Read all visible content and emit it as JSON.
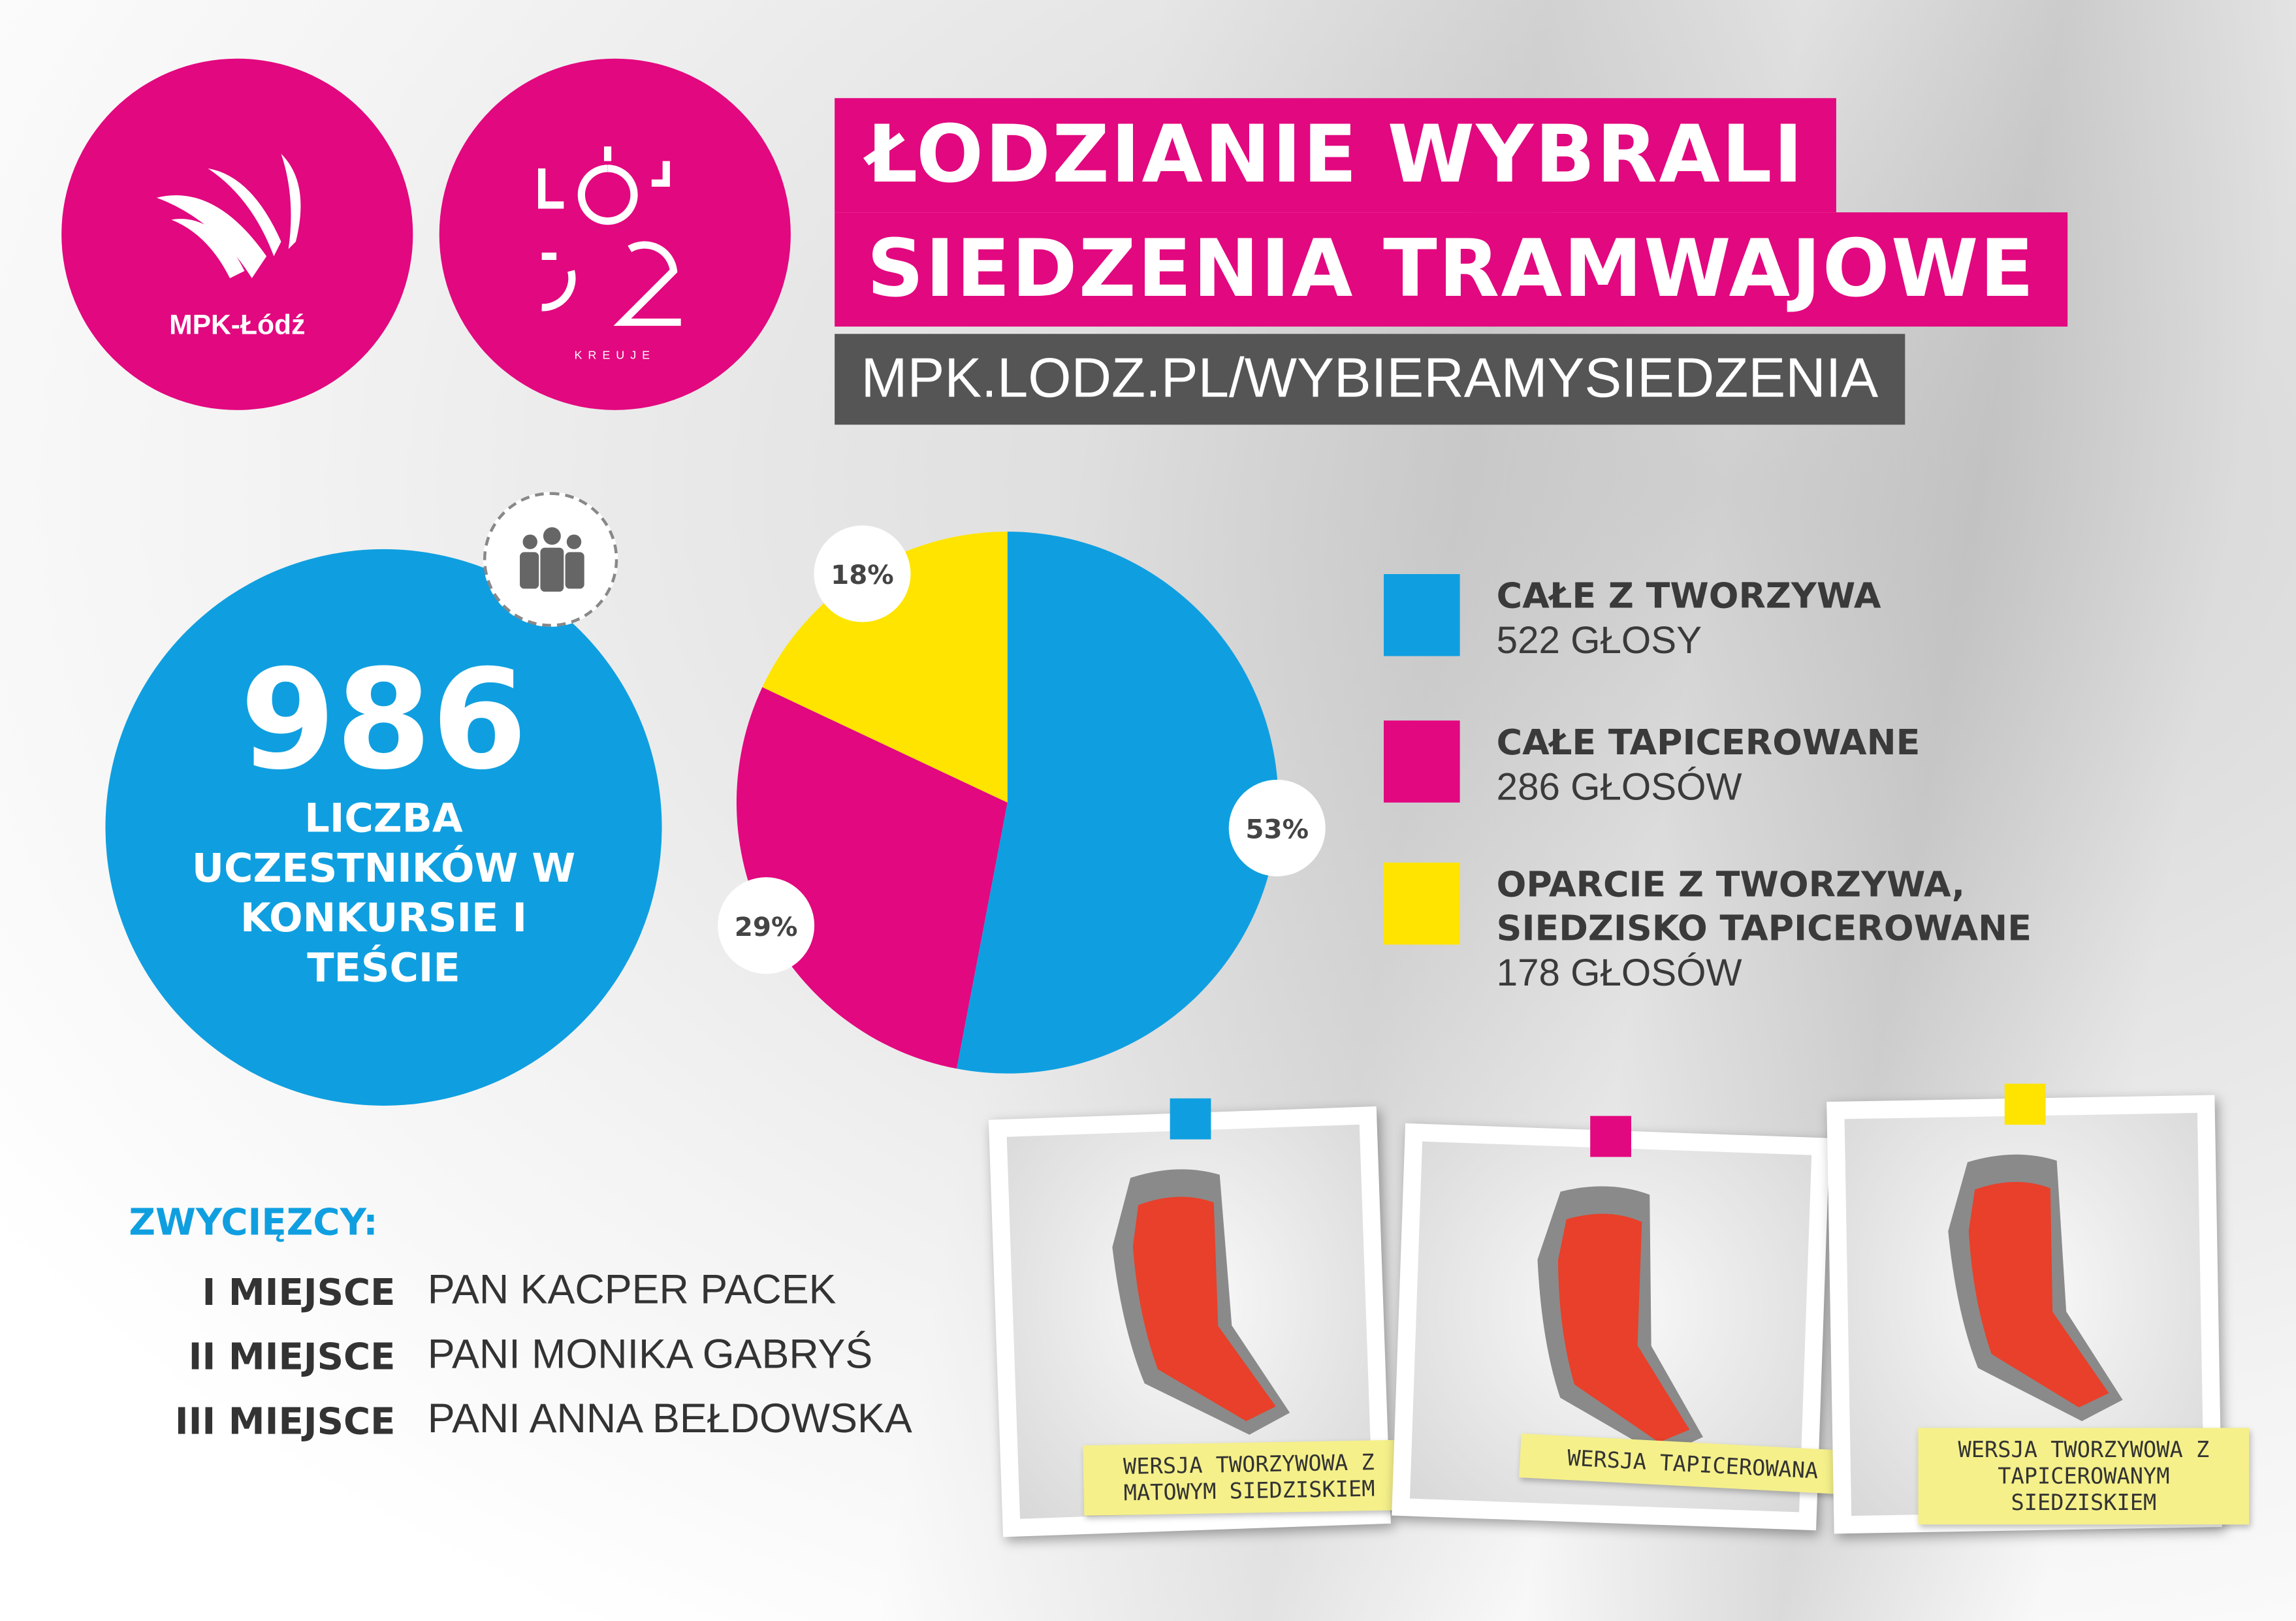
{
  "header": {
    "title_lines": [
      "ŁODZIANIE WYBRALI",
      "SIEDZENIA TRAMWAJOWE"
    ],
    "url": "MPK.LODZ.PL/WYBIERAMYSIEDZENIA"
  },
  "logos": {
    "mpk": "MPK-Łódź",
    "lodz": "KREUJE"
  },
  "participants": {
    "count": 986,
    "label": "LICZBA UCZESTNIKÓW W KONKURSIE I TEŚCIE"
  },
  "chart_data": {
    "type": "pie",
    "categories": [
      "CAŁE Z TWORZYWA",
      "CAŁE TAPICEROWANE",
      "OPARCIE Z TWORZYWA, SIEDZISKO TAPICEROWANE"
    ],
    "values": [
      53,
      29,
      18
    ],
    "value_labels": [
      "53%",
      "29%",
      "18%"
    ],
    "colors": [
      "#0f9fe0",
      "#e2087f",
      "#ffe400"
    ],
    "votes": [
      "522 GŁOSY",
      "286 GŁOSÓW",
      "178 GŁOSÓW"
    ]
  },
  "winners": {
    "heading": "ZWYCIĘZCY:",
    "rows": [
      [
        "I MIEJSCE",
        "PAN KACPER PACEK"
      ],
      [
        "II MIEJSCE",
        "PANI MONIKA GABRYŚ"
      ],
      [
        "III MIEJSCE",
        "PANI ANNA BEŁDOWSKA"
      ]
    ]
  },
  "photos": [
    "WERSJA TWORZYWOWA Z MATOWYM SIEDZISKIEM",
    "WERSJA TAPICEROWANA",
    "WERSJA TWORZYWOWA Z TAPICEROWANYM SIEDZISKIEM"
  ]
}
